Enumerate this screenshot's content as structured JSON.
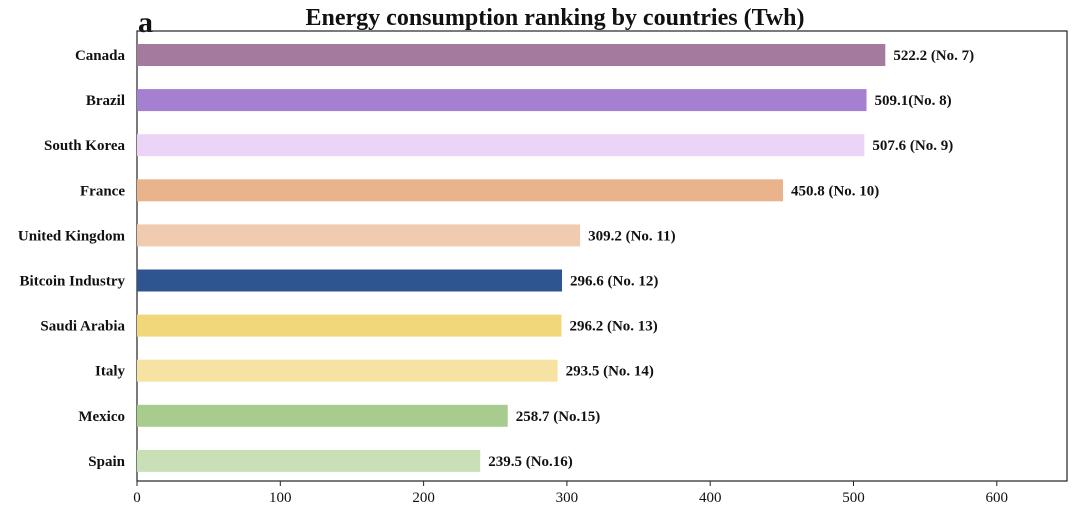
{
  "panel_label": "a",
  "chart_data": {
    "type": "bar",
    "orientation": "horizontal",
    "title": "Energy consumption ranking by countries (Twh)",
    "xlabel": "",
    "ylabel": "",
    "xlim": [
      0,
      650
    ],
    "xticks": [
      0,
      100,
      200,
      300,
      400,
      500,
      600
    ],
    "grid": false,
    "categories": [
      "Canada",
      "Brazil",
      "South Korea",
      "France",
      "United Kingdom",
      "Bitcoin Industry",
      "Saudi Arabia",
      "Italy",
      "Mexico",
      "Spain"
    ],
    "values": [
      522.2,
      509.1,
      507.6,
      450.8,
      309.2,
      296.6,
      296.2,
      293.5,
      258.7,
      239.5
    ],
    "data_labels": [
      "522.2 (No. 7)",
      "509.1(No. 8)",
      "507.6 (No. 9)",
      "450.8 (No. 10)",
      "309.2 (No. 11)",
      "296.6 (No. 12)",
      "296.2 (No. 13)",
      "293.5 (No. 14)",
      "258.7 (No.15)",
      "239.5 (No.16)"
    ],
    "colors": [
      "#a47b9f",
      "#a57fd0",
      "#ecd4f6",
      "#e9b38b",
      "#f0cbb0",
      "#2f5590",
      "#f2d67a",
      "#f6e3a3",
      "#a8cc8e",
      "#c9e0b7"
    ]
  }
}
